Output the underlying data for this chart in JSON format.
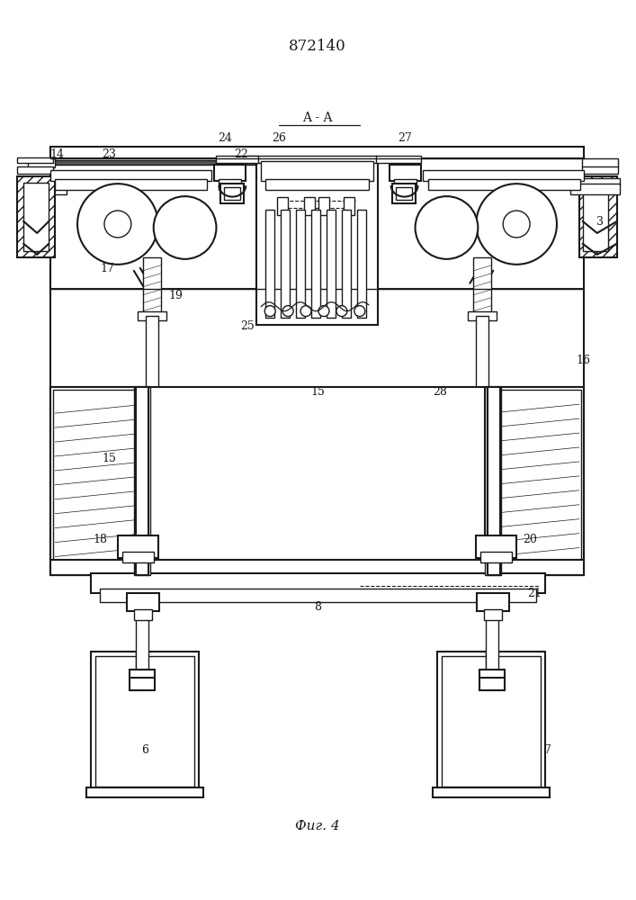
{
  "title": "872140",
  "fig_label": "Фиг. 4",
  "section_label": "A - A",
  "bg_color": "#ffffff",
  "line_color": "#1a1a1a"
}
